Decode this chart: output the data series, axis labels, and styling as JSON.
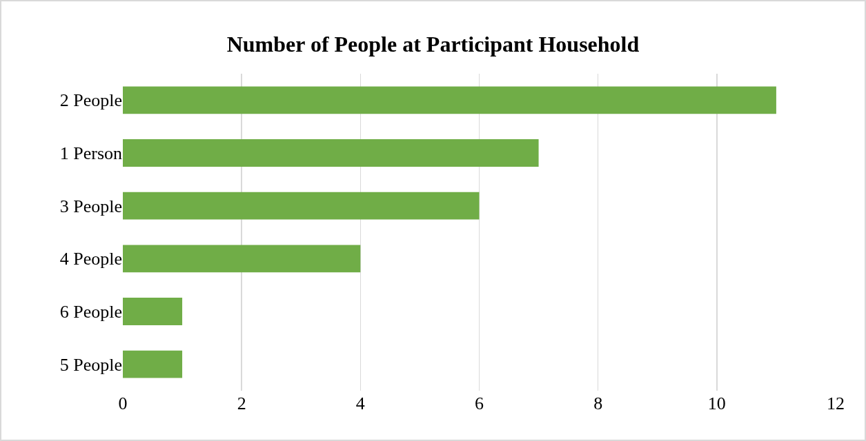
{
  "chart_data": {
    "type": "bar",
    "orientation": "horizontal",
    "title": "Number of People at Participant Household",
    "categories": [
      "2 People",
      "1 Person",
      "3 People",
      "4 People",
      "6 People",
      "5 People"
    ],
    "values": [
      11,
      7,
      6,
      4,
      1,
      1
    ],
    "color": "#70ad47",
    "xlim": [
      0,
      12
    ],
    "xticks": [
      0,
      2,
      4,
      6,
      8,
      10,
      12
    ],
    "grid": "x"
  }
}
